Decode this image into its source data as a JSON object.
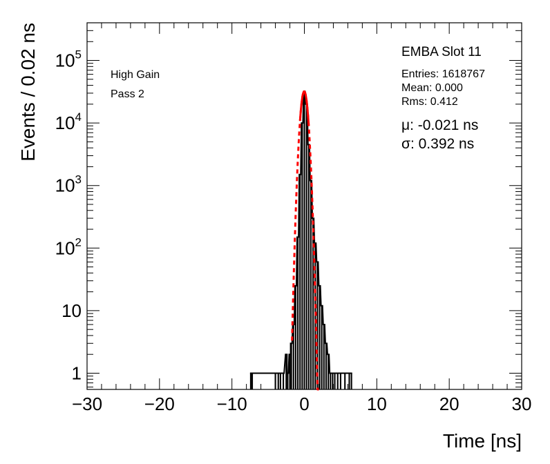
{
  "chart_data": {
    "type": "bar",
    "xlabel": "Time [ns]",
    "ylabel": "Events / 0.02 ns",
    "xlim": [
      -30,
      30
    ],
    "ylim": [
      0.55,
      400000
    ],
    "yscale": "log",
    "xticks_major": [
      -30,
      -20,
      -10,
      0,
      10,
      20,
      30
    ],
    "xtick_labels": [
      "−30",
      "−20",
      "−10",
      "0",
      "10",
      "20",
      "30"
    ],
    "yticks_major": [
      1,
      10,
      100,
      1000,
      10000,
      100000
    ],
    "ytick_labels": [
      {
        "base": "1",
        "exp": ""
      },
      {
        "base": "10",
        "exp": ""
      },
      {
        "base": "10",
        "exp": "2"
      },
      {
        "base": "10",
        "exp": "3"
      },
      {
        "base": "10",
        "exp": "4"
      },
      {
        "base": "10",
        "exp": "5"
      }
    ],
    "grid": false,
    "histogram": {
      "name": "EMBA Slot 11",
      "entries": 1618767,
      "mean": 0.0,
      "rms": 0.412,
      "bin_width": 0.02,
      "color": "#000000",
      "points": [
        {
          "x": -7.4,
          "y": 1
        },
        {
          "x": -7.2,
          "y": 1
        },
        {
          "x": -4.0,
          "y": 1
        },
        {
          "x": -3.6,
          "y": 1
        },
        {
          "x": -3.3,
          "y": 1
        },
        {
          "x": -2.9,
          "y": 1
        },
        {
          "x": -2.5,
          "y": 2
        },
        {
          "x": -2.3,
          "y": 1
        },
        {
          "x": -2.0,
          "y": 2
        },
        {
          "x": -1.8,
          "y": 3
        },
        {
          "x": -1.5,
          "y": 6
        },
        {
          "x": -1.2,
          "y": 25
        },
        {
          "x": -0.9,
          "y": 150
        },
        {
          "x": -0.6,
          "y": 1500
        },
        {
          "x": -0.3,
          "y": 10000
        },
        {
          "x": 0.0,
          "y": 32000
        },
        {
          "x": 0.3,
          "y": 20000
        },
        {
          "x": 0.6,
          "y": 4500
        },
        {
          "x": 0.9,
          "y": 1200
        },
        {
          "x": 1.2,
          "y": 300
        },
        {
          "x": 1.5,
          "y": 120
        },
        {
          "x": 1.8,
          "y": 60
        },
        {
          "x": 2.1,
          "y": 25
        },
        {
          "x": 2.4,
          "y": 12
        },
        {
          "x": 2.7,
          "y": 6
        },
        {
          "x": 3.0,
          "y": 3
        },
        {
          "x": 3.3,
          "y": 2
        },
        {
          "x": 3.6,
          "y": 1
        },
        {
          "x": 3.9,
          "y": 1
        },
        {
          "x": 4.2,
          "y": 1
        },
        {
          "x": 4.6,
          "y": 1
        },
        {
          "x": 5.0,
          "y": 1
        },
        {
          "x": 5.6,
          "y": 1
        },
        {
          "x": 6.2,
          "y": 1
        },
        {
          "x": 6.5,
          "y": 1
        }
      ]
    },
    "fit": {
      "type": "gaussian",
      "mu": -0.021,
      "sigma": 0.392,
      "amplitude": 32000,
      "color": "#ff0000",
      "solid_range": [
        -0.6,
        0.6
      ],
      "dashed_range": [
        -1.7,
        2.0
      ]
    },
    "annotations": {
      "gain": "High Gain",
      "pass": "Pass 2",
      "title": "EMBA Slot 11",
      "entries": "Entries: 1618767",
      "mean": "Mean: 0.000",
      "rms": "Rms: 0.412",
      "mu_line": "μ: -0.021 ns",
      "sigma_line": "σ: 0.392 ns"
    }
  }
}
